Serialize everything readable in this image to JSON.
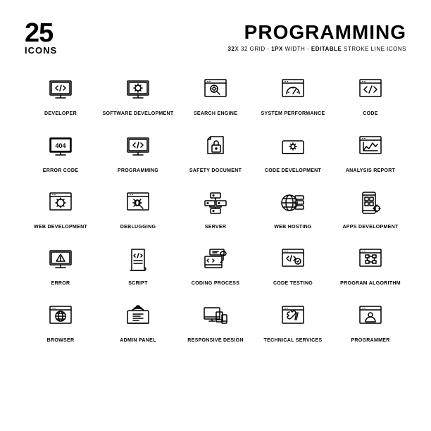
{
  "header": {
    "count": "25",
    "count_label": "ICONS",
    "title": "PROGRAMMING",
    "subtitle_prefix": "32",
    "subtitle_x": "X",
    "subtitle_grid": " 32 GRID - ",
    "subtitle_px": "1PX",
    "subtitle_width": " WIDTH - ",
    "subtitle_edit": "EDITABLE",
    "subtitle_suffix": " STROKE LINE ICONS"
  },
  "icons": [
    {
      "label": "DEVELOPER",
      "name": "developer-icon"
    },
    {
      "label": "SOFTWARE DEVELOPMENT",
      "name": "software-development-icon"
    },
    {
      "label": "SEARCH ENGINE",
      "name": "search-engine-icon"
    },
    {
      "label": "SYSTEM PERFORMANCE",
      "name": "system-performance-icon"
    },
    {
      "label": "CODE",
      "name": "code-icon"
    },
    {
      "label": "ERROR CODE",
      "name": "error-code-icon"
    },
    {
      "label": "PROGRAMMING",
      "name": "programming-icon"
    },
    {
      "label": "SAFETY DOCUMENT",
      "name": "safety-document-icon"
    },
    {
      "label": "CODE DEVELOPMENT",
      "name": "code-development-icon"
    },
    {
      "label": "ANALYSIS REPORT",
      "name": "analysis-report-icon"
    },
    {
      "label": "WEB DEVELOPMENT",
      "name": "web-development-icon"
    },
    {
      "label": "DEBLUGGING",
      "name": "debugging-icon"
    },
    {
      "label": "SERVER",
      "name": "server-icon"
    },
    {
      "label": "WEB HOSTING",
      "name": "web-hosting-icon"
    },
    {
      "label": "APPS DEVELOPMENT",
      "name": "apps-development-icon"
    },
    {
      "label": "ERROR",
      "name": "error-icon"
    },
    {
      "label": "SCRIPT",
      "name": "script-icon"
    },
    {
      "label": "CODING PROCESS",
      "name": "coding-process-icon"
    },
    {
      "label": "CODE TESTING",
      "name": "code-testing-icon"
    },
    {
      "label": "PROGRAM ALGORITHM",
      "name": "program-algorithm-icon"
    },
    {
      "label": "BROWSER",
      "name": "browser-icon"
    },
    {
      "label": "ADMIN PANEL",
      "name": "admin-panel-icon"
    },
    {
      "label": "RESPONSIVE DESIGN",
      "name": "responsive-design-icon"
    },
    {
      "label": "TECHNICAL SERVICES",
      "name": "technical-services-icon"
    },
    {
      "label": "PROGRAMMER",
      "name": "programmer-icon"
    }
  ],
  "style": {
    "grid_cols": 5,
    "icon_stroke": "#000000",
    "bg": "#ffffff"
  }
}
